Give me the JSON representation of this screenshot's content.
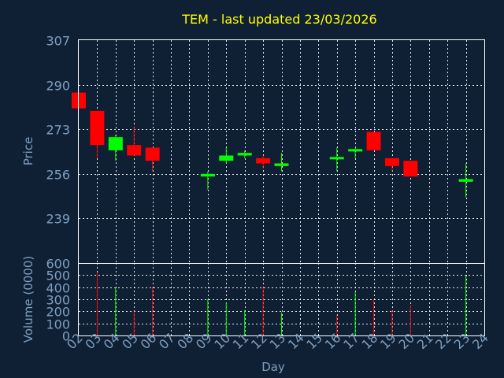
{
  "chart_data": {
    "type": "candlestick",
    "title": "TEM - last updated 23/03/2026",
    "xlabel": "Day",
    "price_panel": {
      "ylabel": "Price",
      "yticks": [
        "239",
        "256",
        "273",
        "290",
        "307"
      ],
      "ylim": [
        222,
        307
      ],
      "grid": true
    },
    "volume_panel": {
      "ylabel": "Volume (0000)",
      "yticks": [
        "0",
        "100",
        "200",
        "300",
        "400",
        "500",
        "600"
      ],
      "ylim": [
        0,
        600
      ],
      "grid": true
    },
    "x_ticks": [
      "02",
      "03",
      "04",
      "05",
      "06",
      "07",
      "08",
      "09",
      "10",
      "11",
      "12",
      "13",
      "14",
      "15",
      "16",
      "17",
      "18",
      "19",
      "20",
      "21",
      "22",
      "23",
      "24"
    ],
    "colors": {
      "up": "#00ff00",
      "down": "#ff0000",
      "background": "#0f2035",
      "title": "#ffff00",
      "ticks": "#7f9fbf"
    },
    "candles": [
      {
        "day": "02",
        "open": 287,
        "high": 287,
        "low": 281,
        "close": 281
      },
      {
        "day": "03",
        "open": 280,
        "high": 280,
        "low": 262,
        "close": 267
      },
      {
        "day": "04",
        "open": 265,
        "high": 271,
        "low": 261,
        "close": 270
      },
      {
        "day": "05",
        "open": 267,
        "high": 274,
        "low": 263,
        "close": 263
      },
      {
        "day": "06",
        "open": 266,
        "high": 266,
        "low": 257,
        "close": 261
      },
      {
        "day": "09",
        "open": 255,
        "high": 257,
        "low": 250,
        "close": 256
      },
      {
        "day": "10",
        "open": 261,
        "high": 266,
        "low": 260,
        "close": 263
      },
      {
        "day": "11",
        "open": 263,
        "high": 265,
        "low": 262,
        "close": 264
      },
      {
        "day": "12",
        "open": 262,
        "high": 263,
        "low": 258,
        "close": 260
      },
      {
        "day": "13",
        "open": 259,
        "high": 264,
        "low": 257,
        "close": 260
      },
      {
        "day": "16",
        "open": 262,
        "high": 266,
        "low": 257,
        "close": 262
      },
      {
        "day": "17",
        "open": 265,
        "high": 266,
        "low": 262,
        "close": 265
      },
      {
        "day": "18",
        "open": 272,
        "high": 272,
        "low": 265,
        "close": 265
      },
      {
        "day": "19",
        "open": 262,
        "high": 262,
        "low": 257,
        "close": 259
      },
      {
        "day": "20",
        "open": 261,
        "high": 261,
        "low": 255,
        "close": 255
      },
      {
        "day": "23",
        "open": 253,
        "high": 260,
        "low": 247,
        "close": 254
      }
    ],
    "volume": [
      {
        "day": "02",
        "value": 0,
        "dir": "down"
      },
      {
        "day": "03",
        "value": 520,
        "dir": "down"
      },
      {
        "day": "04",
        "value": 400,
        "dir": "up"
      },
      {
        "day": "05",
        "value": 200,
        "dir": "down"
      },
      {
        "day": "06",
        "value": 400,
        "dir": "down"
      },
      {
        "day": "09",
        "value": 300,
        "dir": "up"
      },
      {
        "day": "10",
        "value": 270,
        "dir": "up"
      },
      {
        "day": "11",
        "value": 210,
        "dir": "up"
      },
      {
        "day": "12",
        "value": 400,
        "dir": "down"
      },
      {
        "day": "13",
        "value": 190,
        "dir": "up"
      },
      {
        "day": "16",
        "value": 170,
        "dir": "down"
      },
      {
        "day": "17",
        "value": 360,
        "dir": "up"
      },
      {
        "day": "18",
        "value": 300,
        "dir": "down"
      },
      {
        "day": "19",
        "value": 210,
        "dir": "down"
      },
      {
        "day": "20",
        "value": 250,
        "dir": "down"
      },
      {
        "day": "23",
        "value": 500,
        "dir": "up"
      }
    ]
  }
}
